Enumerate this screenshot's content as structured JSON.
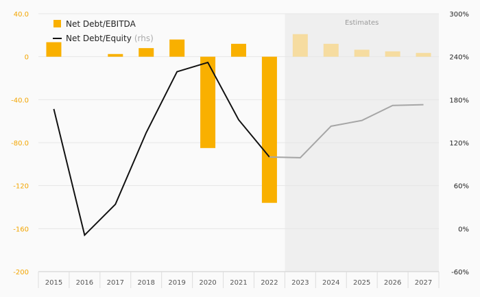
{
  "chart_data": {
    "type": "bar",
    "categories": [
      "2015",
      "2016",
      "2017",
      "2018",
      "2019",
      "2020",
      "2021",
      "2022",
      "2023",
      "2024",
      "2025",
      "2026",
      "2027"
    ],
    "series": [
      {
        "name": "Net Debt/EBITDA",
        "type": "bar",
        "axis": "left",
        "values": [
          13.5,
          0,
          2.5,
          8,
          16,
          -85,
          12,
          -136,
          21,
          12,
          6.5,
          5,
          3.5
        ]
      },
      {
        "name": "Net Debt/Equity",
        "name_suffix": "(rhs)",
        "type": "line",
        "axis": "right",
        "values": [
          167,
          -9,
          34,
          134,
          219,
          232,
          152,
          100,
          99,
          143,
          151,
          172,
          173
        ]
      }
    ],
    "estimates_label": "Estimates",
    "estimates_start_index": 8,
    "y_left": {
      "ticks": [
        40,
        0,
        -40,
        -80,
        -120,
        -160,
        -200
      ],
      "tick_labels": [
        "40.0",
        "0",
        "-40.0",
        "-80.0",
        "-120",
        "-160",
        "-200"
      ],
      "range": [
        -200,
        40
      ]
    },
    "y_right": {
      "ticks": [
        300,
        240,
        180,
        120,
        60,
        0,
        -60
      ],
      "tick_labels": [
        "300%",
        "240%",
        "180%",
        "120%",
        "60%",
        "0%",
        "-60%"
      ],
      "range": [
        -60,
        300
      ]
    },
    "colors": {
      "bar": "#f9b000",
      "bar_estimate": "#f6dca0",
      "line": "#111111",
      "line_estimate": "#a6a6a6",
      "left_axis_text": "#f3a500",
      "right_axis_text": "#222222",
      "estimates_bg": "#efefef",
      "grid": "#e6e6e6"
    },
    "grid": true,
    "legend_position": "top-left"
  }
}
